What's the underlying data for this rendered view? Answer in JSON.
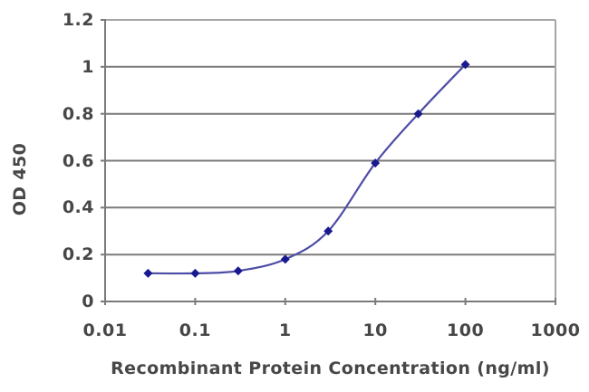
{
  "chart_data": {
    "type": "line",
    "x": [
      0.03,
      0.1,
      0.3,
      1,
      3,
      10,
      30,
      100
    ],
    "series": [
      {
        "name": "OD 450",
        "values": [
          0.12,
          0.12,
          0.13,
          0.18,
          0.3,
          0.59,
          0.8,
          1.01
        ]
      }
    ],
    "title": "",
    "xlabel": "Recombinant Protein Concentration (ng/ml)",
    "ylabel": "OD 450",
    "x_scale": "log",
    "xlim": [
      0.01,
      1000
    ],
    "ylim": [
      0,
      1.2
    ],
    "x_ticks": {
      "values": [
        0.01,
        0.1,
        1,
        10,
        100,
        1000
      ],
      "labels": [
        "0.01",
        "0.1",
        "1",
        "10",
        "100",
        "1000"
      ]
    },
    "y_ticks": {
      "values": [
        0,
        0.2,
        0.4,
        0.6,
        0.8,
        1,
        1.2
      ],
      "labels": [
        "0",
        "0.2",
        "0.4",
        "0.6",
        "0.8",
        "1",
        "1.2"
      ]
    },
    "grid": "horizontal",
    "legend": "none",
    "marker": "diamond",
    "line_smooth": true,
    "colors": {
      "line": "#4d4da6",
      "marker": "#1a1a90",
      "grid": "#7a7a7a",
      "border": "#a6a6a6",
      "text": "#474747",
      "background": "#ffffff"
    }
  }
}
